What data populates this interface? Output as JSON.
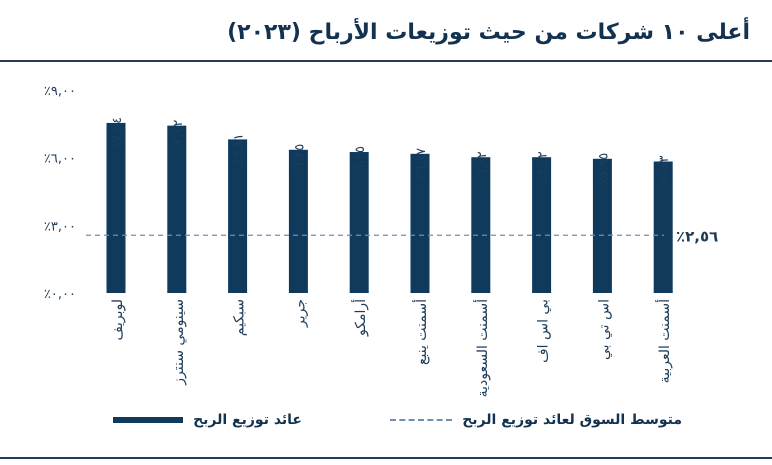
{
  "title": "أعلى ١٠ شركات من حيث توزيعات الأرباح (٢٠٢٣)",
  "chart_data": {
    "type": "bar",
    "categories": [
      "لوبريف",
      "سينومي سنترز",
      "سبكيم",
      "جرير",
      "أرامكو",
      "أسمنت ينبع",
      "أسمنت السعودية",
      "بي اس اف",
      "اس تي بي",
      "أسمنت العربية"
    ],
    "values": [
      7.54,
      7.42,
      6.81,
      6.35,
      6.25,
      6.17,
      6.02,
      6.02,
      5.95,
      5.83
    ],
    "value_labels": [
      "٪٧,٥٤",
      "٪٧,٤٢",
      "٪٦,٨١",
      "٪٦,٣٥",
      "٪٦,٢٥",
      "٪٦,١٧",
      "٪٦,٠٢",
      "٪٦,٠٢",
      "٪٥,٩٥",
      "٪٥,٨٣"
    ],
    "yticks": [
      0,
      3,
      6,
      9
    ],
    "ytick_labels": [
      "٪٠,٠٠",
      "٪٣,٠٠",
      "٪٦,٠٠",
      "٪٩,٠٠"
    ],
    "ylim": [
      0,
      9
    ],
    "reference_line": {
      "value": 2.56,
      "label": "٪٢,٥٦"
    },
    "series": [
      {
        "name": "عائد توزيع الربح"
      },
      {
        "name": "متوسط السوق لعائد توزيع الربح"
      }
    ],
    "grid": false,
    "legend_position": "bottom",
    "colors": {
      "bar": "#0f3a5c",
      "reference": "#6d8fb3",
      "text": "#1f3d5a"
    }
  }
}
